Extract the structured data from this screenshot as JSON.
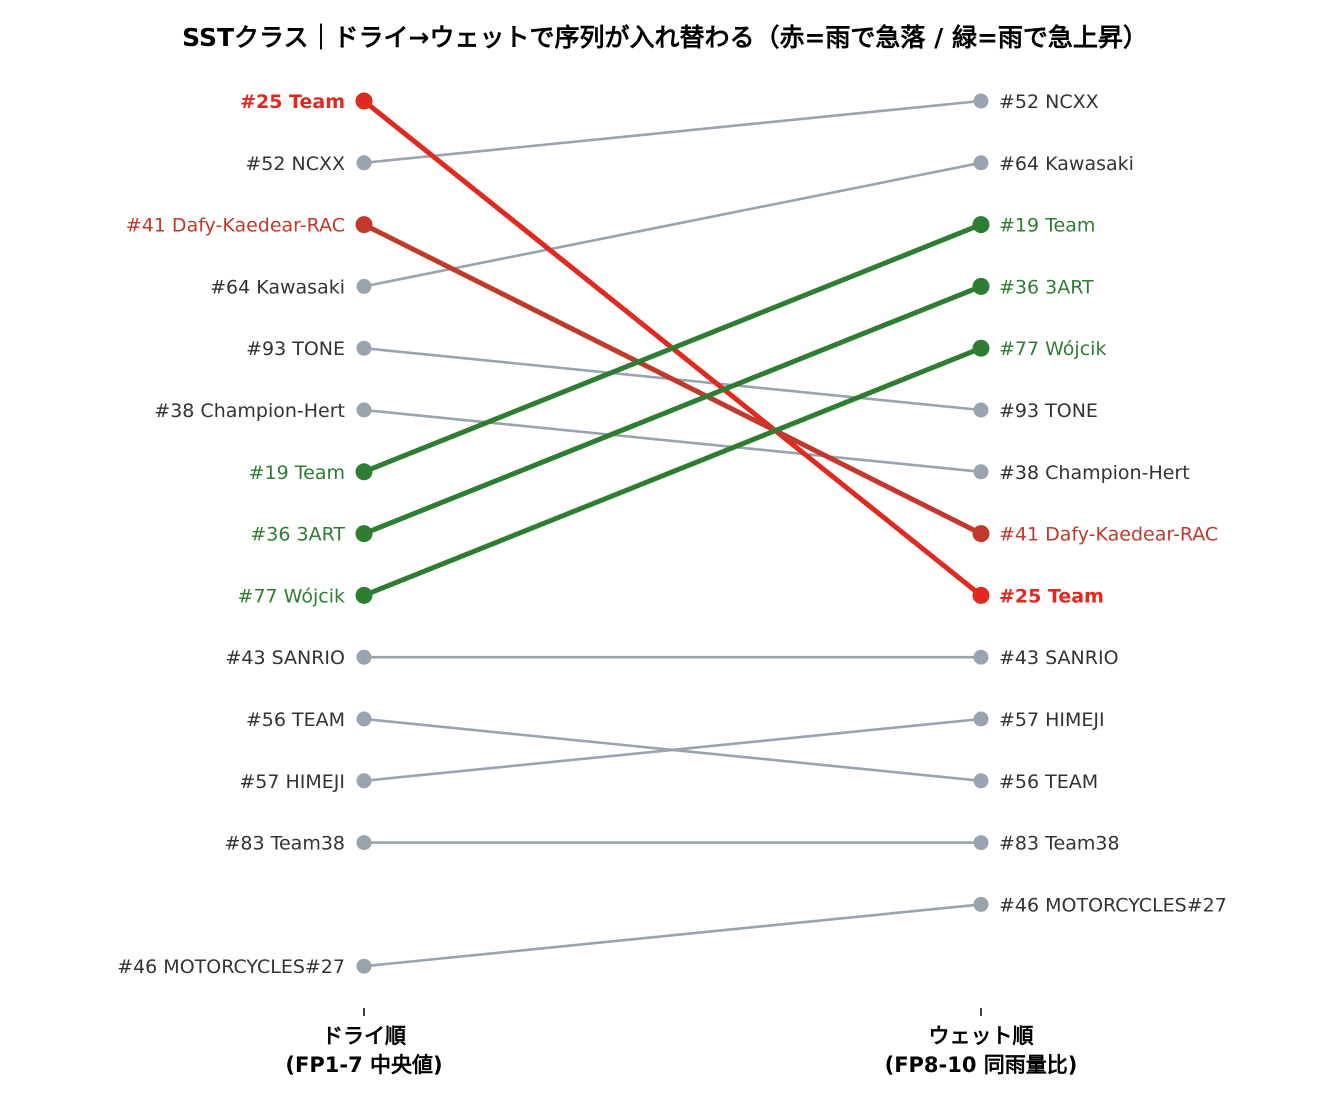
{
  "title": "SSTクラス｜ドライ→ウェットで序列が入れ替わる（赤=雨で急落 / 緑=雨で急上昇）",
  "colors": {
    "neutral_line": "#9aa3b0",
    "neutral_text": "#333333",
    "drop_strong": "#e02a1f",
    "drop": "#c0392b",
    "rise": "#2e7d32"
  },
  "chart_data": {
    "type": "slope",
    "title": "SSTクラス｜ドライ→ウェットで序列が入れ替わる（赤=雨で急落 / 緑=雨で急上昇）",
    "axes": [
      {
        "key": "dry",
        "label_line1": "ドライ順",
        "label_line2": "(FP1-7 中央値)"
      },
      {
        "key": "wet",
        "label_line1": "ウェット順",
        "label_line2": "(FP8-10 同雨量比)"
      }
    ],
    "rank_direction": "1 at top",
    "rank_range": [
      1,
      15
    ],
    "series": [
      {
        "name": "#25 Team",
        "dry": 1,
        "wet": 9,
        "highlight": "drop_strong",
        "bold": true
      },
      {
        "name": "#52 NCXX",
        "dry": 2,
        "wet": 1,
        "highlight": "none"
      },
      {
        "name": "#41 Dafy-Kaedear-RAC",
        "dry": 3,
        "wet": 8,
        "highlight": "drop"
      },
      {
        "name": "#64 Kawasaki",
        "dry": 4,
        "wet": 2,
        "highlight": "none"
      },
      {
        "name": "#93 TONE",
        "dry": 5,
        "wet": 6,
        "highlight": "none"
      },
      {
        "name": "#38 Champion-Hert",
        "dry": 6,
        "wet": 7,
        "highlight": "none"
      },
      {
        "name": "#19 Team",
        "dry": 7,
        "wet": 3,
        "highlight": "rise"
      },
      {
        "name": "#36 3ART",
        "dry": 8,
        "wet": 4,
        "highlight": "rise"
      },
      {
        "name": "#77 Wójcik",
        "dry": 9,
        "wet": 5,
        "highlight": "rise"
      },
      {
        "name": "#43 SANRIO",
        "dry": 10,
        "wet": 10,
        "highlight": "none"
      },
      {
        "name": "#56 TEAM",
        "dry": 11,
        "wet": 12,
        "highlight": "none"
      },
      {
        "name": "#57 HIMEJI",
        "dry": 12,
        "wet": 11,
        "highlight": "none"
      },
      {
        "name": "#83 Team38",
        "dry": 13,
        "wet": 13,
        "highlight": "none"
      },
      {
        "name": "#46 MOTORCYCLES#27",
        "dry": 15,
        "wet": 14,
        "highlight": "none"
      }
    ]
  }
}
